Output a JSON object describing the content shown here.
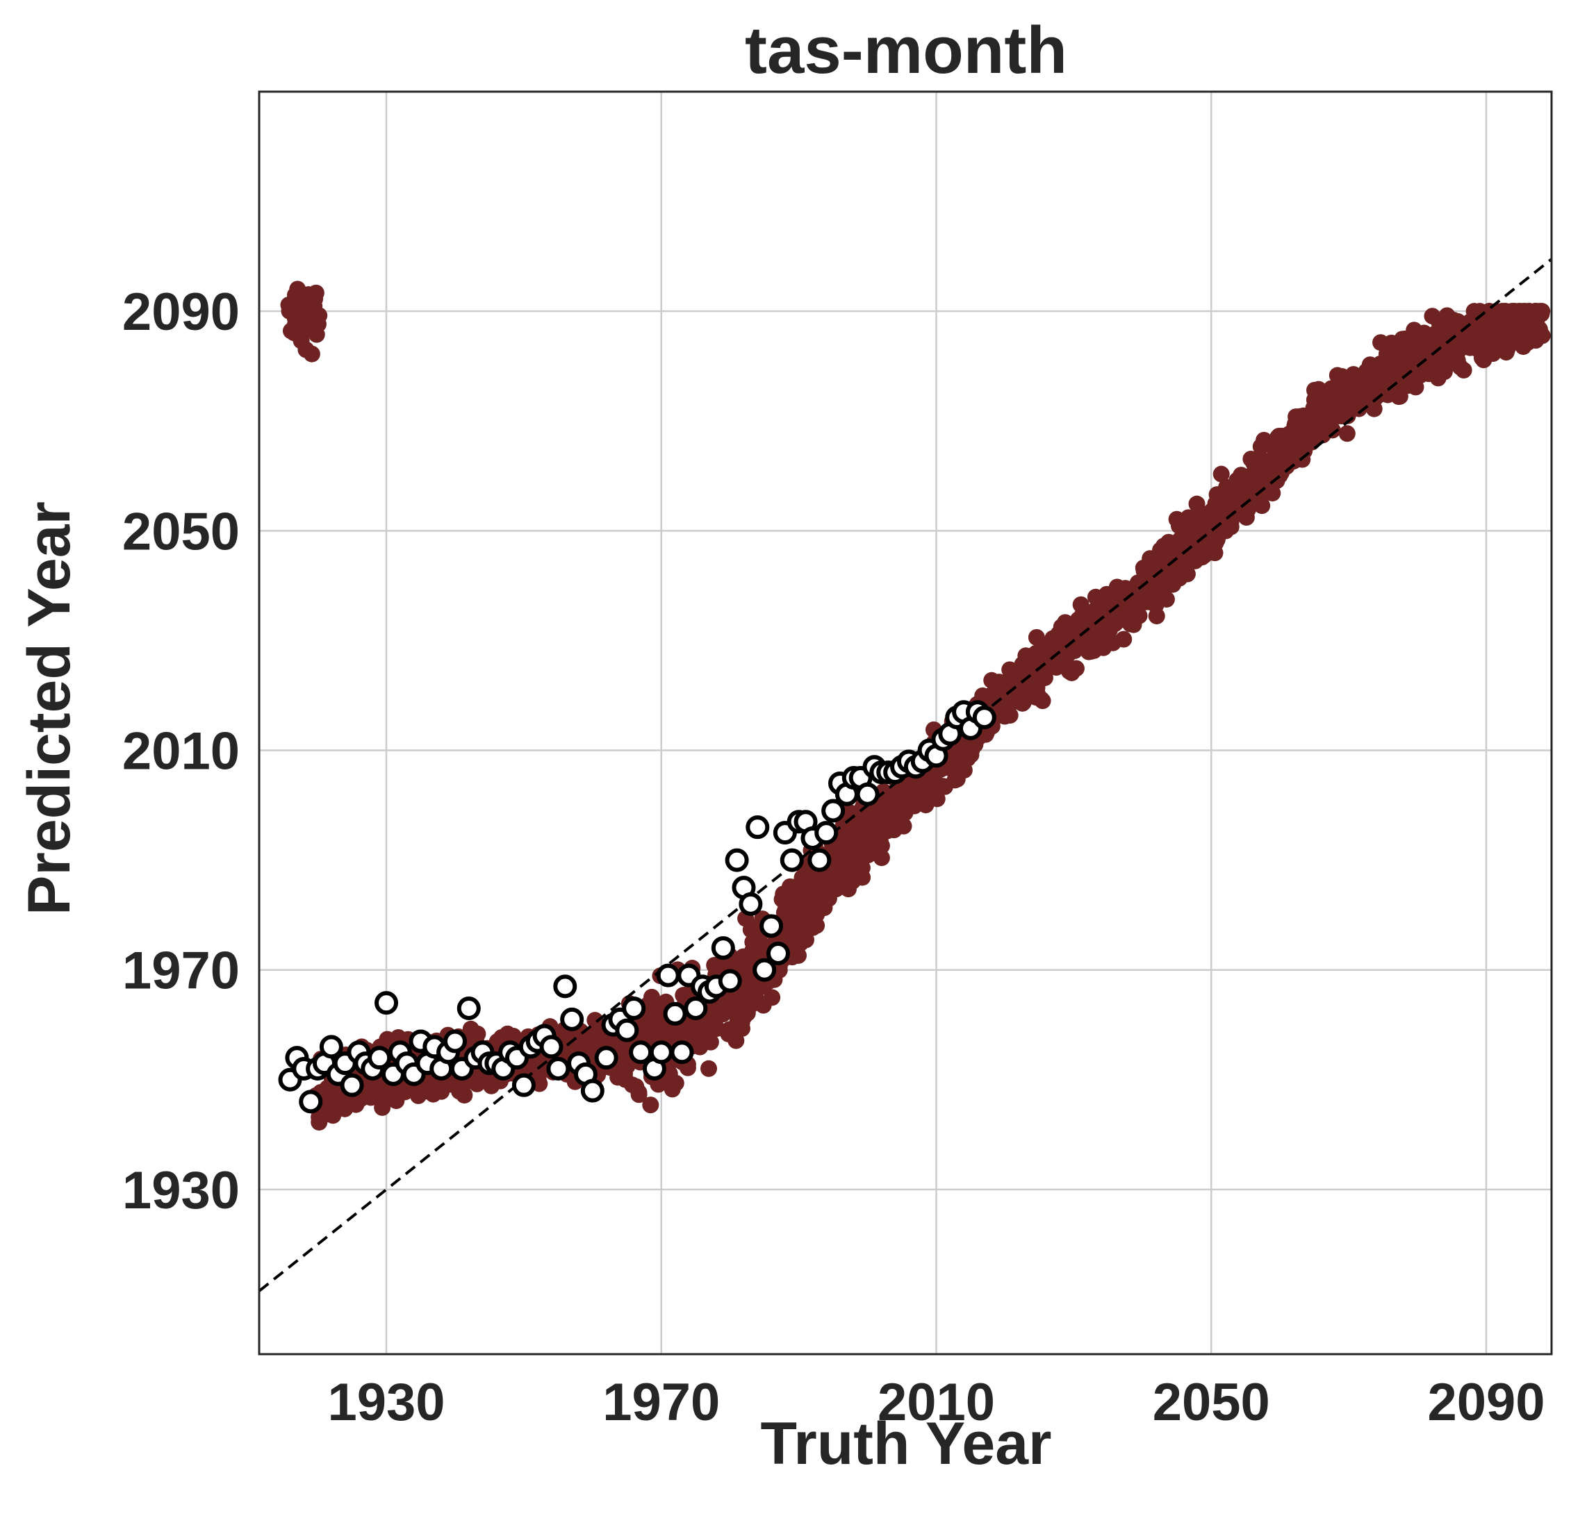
{
  "chart_data": {
    "type": "scatter",
    "title": "tas-month",
    "xlabel": "Truth Year",
    "ylabel": "Predicted Year",
    "xlim": [
      1911.5,
      2099.5
    ],
    "ylim": [
      1900,
      2130
    ],
    "xticks": [
      1930,
      1970,
      2010,
      2050,
      2090
    ],
    "yticks": [
      1930,
      1970,
      2010,
      2050,
      2090
    ],
    "grid": true,
    "reference_line": {
      "style": "dashed",
      "color": "#000000",
      "x": [
        1911.5,
        2099.5
      ],
      "y": [
        1911.5,
        2099.5
      ]
    },
    "series": [
      {
        "style": "filled",
        "color": "#6e2222",
        "note_trend": [
          [
            1920,
            1947
          ],
          [
            1925,
            1950
          ],
          [
            1930,
            1951
          ],
          [
            1935,
            1952
          ],
          [
            1940,
            1953
          ],
          [
            1945,
            1954
          ],
          [
            1950,
            1954
          ],
          [
            1955,
            1955
          ],
          [
            1960,
            1955
          ],
          [
            1965,
            1955
          ],
          [
            1970,
            1957
          ],
          [
            1975,
            1960
          ],
          [
            1980,
            1966
          ],
          [
            1985,
            1973
          ],
          [
            1990,
            1981
          ],
          [
            1995,
            1988
          ],
          [
            2000,
            1995
          ],
          [
            2005,
            2001
          ],
          [
            2010,
            2007
          ],
          [
            2015,
            2013
          ],
          [
            2020,
            2020
          ],
          [
            2025,
            2025
          ],
          [
            2030,
            2030
          ],
          [
            2035,
            2034
          ],
          [
            2040,
            2039
          ],
          [
            2045,
            2045
          ],
          [
            2050,
            2051
          ],
          [
            2055,
            2057
          ],
          [
            2060,
            2064
          ],
          [
            2065,
            2070
          ],
          [
            2070,
            2074
          ],
          [
            2075,
            2078
          ],
          [
            2080,
            2082
          ],
          [
            2085,
            2084
          ],
          [
            2090,
            2086
          ],
          [
            2095,
            2088
          ],
          [
            2098,
            2089
          ]
        ]
      },
      {
        "style": "open",
        "color": "#ffffff",
        "edgecolor": "#000000",
        "points": [
          [
            1916,
            1950
          ],
          [
            1917,
            1954
          ],
          [
            1918,
            1952
          ],
          [
            1919,
            1946
          ],
          [
            1920,
            1952
          ],
          [
            1921,
            1953
          ],
          [
            1922,
            1956
          ],
          [
            1923,
            1951
          ],
          [
            1924,
            1953
          ],
          [
            1925,
            1949
          ],
          [
            1926,
            1955
          ],
          [
            1927,
            1953
          ],
          [
            1928,
            1952
          ],
          [
            1929,
            1954
          ],
          [
            1930,
            1964
          ],
          [
            1931,
            1951
          ],
          [
            1932,
            1955
          ],
          [
            1933,
            1953
          ],
          [
            1934,
            1951
          ],
          [
            1935,
            1957
          ],
          [
            1936,
            1953
          ],
          [
            1937,
            1956
          ],
          [
            1938,
            1952
          ],
          [
            1939,
            1955
          ],
          [
            1940,
            1957
          ],
          [
            1941,
            1952
          ],
          [
            1942,
            1963
          ],
          [
            1943,
            1954
          ],
          [
            1944,
            1955
          ],
          [
            1945,
            1953
          ],
          [
            1946,
            1953
          ],
          [
            1947,
            1952
          ],
          [
            1948,
            1955
          ],
          [
            1949,
            1954
          ],
          [
            1950,
            1949
          ],
          [
            1951,
            1956
          ],
          [
            1952,
            1957
          ],
          [
            1953,
            1958
          ],
          [
            1954,
            1956
          ],
          [
            1955,
            1952
          ],
          [
            1956,
            1967
          ],
          [
            1957,
            1961
          ],
          [
            1958,
            1953
          ],
          [
            1959,
            1951
          ],
          [
            1960,
            1948
          ],
          [
            1962,
            1954
          ],
          [
            1963,
            1960
          ],
          [
            1964,
            1961
          ],
          [
            1965,
            1959
          ],
          [
            1966,
            1963
          ],
          [
            1967,
            1955
          ],
          [
            1969,
            1952
          ],
          [
            1970,
            1955
          ],
          [
            1971,
            1969
          ],
          [
            1972,
            1962
          ],
          [
            1973,
            1955
          ],
          [
            1974,
            1969
          ],
          [
            1975,
            1963
          ],
          [
            1976,
            1967
          ],
          [
            1977,
            1966
          ],
          [
            1978,
            1967
          ],
          [
            1979,
            1974
          ],
          [
            1980,
            1968
          ],
          [
            1981,
            1990
          ],
          [
            1982,
            1985
          ],
          [
            1983,
            1982
          ],
          [
            1984,
            1996
          ],
          [
            1985,
            1970
          ],
          [
            1986,
            1978
          ],
          [
            1987,
            1973
          ],
          [
            1988,
            1995
          ],
          [
            1989,
            1990
          ],
          [
            1990,
            1997
          ],
          [
            1991,
            1997
          ],
          [
            1992,
            1994
          ],
          [
            1993,
            1990
          ],
          [
            1994,
            1995
          ],
          [
            1995,
            1999
          ],
          [
            1996,
            2004
          ],
          [
            1997,
            2002
          ],
          [
            1998,
            2005
          ],
          [
            1999,
            2005
          ],
          [
            2000,
            2002
          ],
          [
            2001,
            2007
          ],
          [
            2002,
            2006
          ],
          [
            2003,
            2006
          ],
          [
            2004,
            2006
          ],
          [
            2005,
            2007
          ],
          [
            2006,
            2008
          ],
          [
            2007,
            2007
          ],
          [
            2008,
            2008
          ],
          [
            2009,
            2010
          ],
          [
            2010,
            2009
          ],
          [
            2011,
            2012
          ],
          [
            2012,
            2013
          ],
          [
            2013,
            2016
          ],
          [
            2014,
            2017
          ],
          [
            2015,
            2014
          ],
          [
            2016,
            2017
          ],
          [
            2017,
            2016
          ]
        ]
      }
    ]
  }
}
